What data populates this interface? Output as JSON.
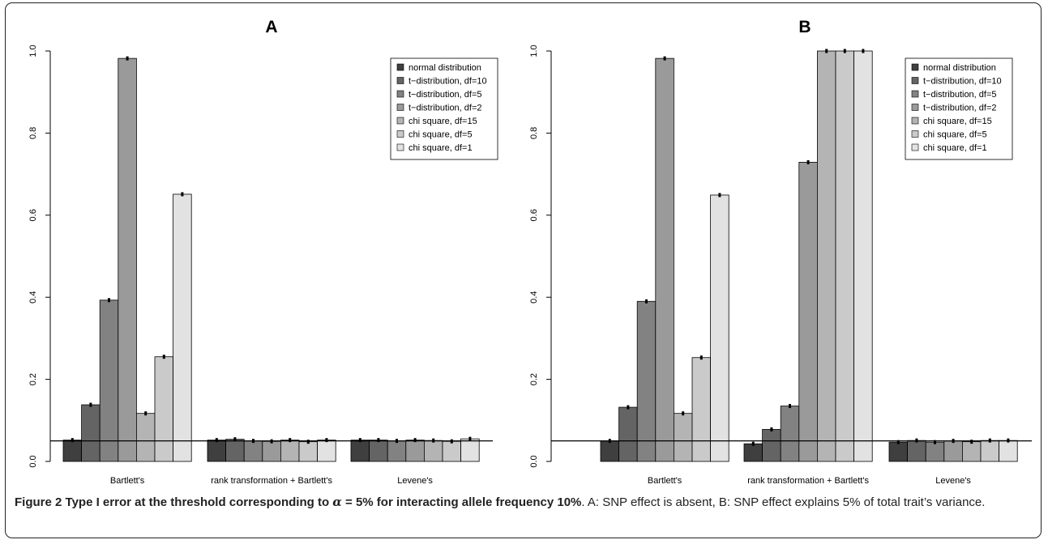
{
  "figure": {
    "caption_label": "Figure 2",
    "caption_title_pre": " Type I error at the threshold corresponding to ",
    "caption_alpha": "α",
    "caption_title_post": " = 5% for interacting allele frequency 10%",
    "caption_text": ". A: SNP effect is absent, B: SNP effect explains 5% of total trait’s variance."
  },
  "colors": {
    "series": [
      "#3f3f3f",
      "#646464",
      "#828282",
      "#9a9a9a",
      "#b4b4b4",
      "#cacaca",
      "#e2e2e2"
    ],
    "outline": "#000000"
  },
  "chart_data": [
    {
      "type": "bar",
      "title": "A",
      "categories": [
        "Bartlett's",
        "rank transformation + Bartlett's",
        "Levene's"
      ],
      "ylim": [
        0,
        1
      ],
      "yticks": [
        "0.0",
        "0.2",
        "0.4",
        "0.6",
        "0.8",
        "1.0"
      ],
      "reference_line": 0.05,
      "legend_position": "top-right",
      "series": [
        {
          "name": "normal distribution",
          "values": [
            0.052,
            0.052,
            0.052
          ]
        },
        {
          "name": "t−distribution, df=10",
          "values": [
            0.138,
            0.054,
            0.052
          ]
        },
        {
          "name": "t−distribution, df=5",
          "values": [
            0.393,
            0.05,
            0.05
          ]
        },
        {
          "name": "t−distribution, df=2",
          "values": [
            0.982,
            0.049,
            0.052
          ]
        },
        {
          "name": "chi square, df=15",
          "values": [
            0.117,
            0.052,
            0.051
          ]
        },
        {
          "name": "chi square, df=5",
          "values": [
            0.255,
            0.048,
            0.049
          ]
        },
        {
          "name": "chi square, df=1",
          "values": [
            0.651,
            0.052,
            0.055
          ]
        }
      ]
    },
    {
      "type": "bar",
      "title": "B",
      "categories": [
        "Bartlett's",
        "rank transformation + Bartlett's",
        "Levene's"
      ],
      "ylim": [
        0,
        1
      ],
      "yticks": [
        "0.0",
        "0.2",
        "0.4",
        "0.6",
        "0.8",
        "1.0"
      ],
      "reference_line": 0.05,
      "legend_position": "top-right",
      "series": [
        {
          "name": "normal distribution",
          "values": [
            0.05,
            0.043,
            0.047
          ]
        },
        {
          "name": "t−distribution, df=10",
          "values": [
            0.132,
            0.078,
            0.051
          ]
        },
        {
          "name": "t−distribution, df=5",
          "values": [
            0.39,
            0.135,
            0.047
          ]
        },
        {
          "name": "t−distribution, df=2",
          "values": [
            0.982,
            0.729,
            0.05
          ]
        },
        {
          "name": "chi square, df=15",
          "values": [
            0.117,
            1.0,
            0.048
          ]
        },
        {
          "name": "chi square, df=5",
          "values": [
            0.253,
            1.0,
            0.051
          ]
        },
        {
          "name": "chi square, df=1",
          "values": [
            0.649,
            1.0,
            0.051
          ]
        }
      ]
    }
  ]
}
